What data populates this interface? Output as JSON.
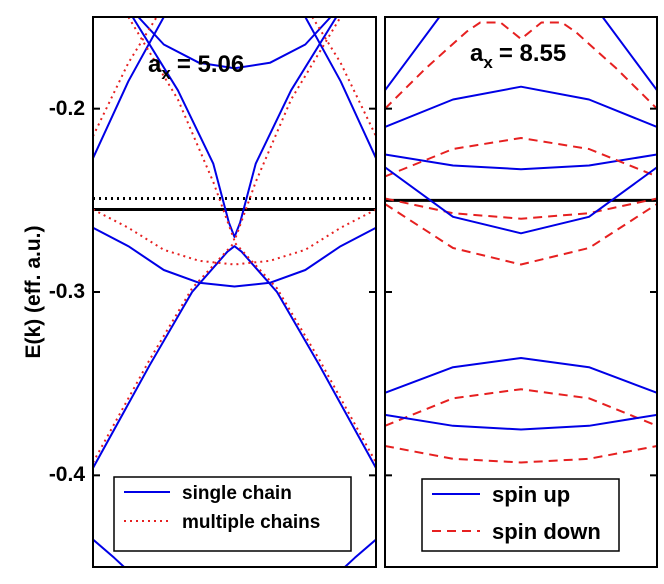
{
  "ylabel": "E(k)  (eff. a.u.)",
  "yticks": [
    "-0.2",
    "-0.3",
    "-0.4"
  ],
  "colors": {
    "blue": "#0000e6",
    "red": "#e62020",
    "black": "#000000"
  },
  "chart_data": [
    {
      "type": "line",
      "panel": "left",
      "annotation": {
        "main": "a",
        "sub": "x",
        "value": "= 5.06"
      },
      "ylim": [
        -0.45,
        -0.15
      ],
      "xlim": [
        -1,
        1
      ],
      "grid": false,
      "legend_position": "bottom",
      "legend": [
        {
          "label": "single chain",
          "style": "solid",
          "color": "blue"
        },
        {
          "label": "multiple chains",
          "style": "dotted",
          "color": "red"
        }
      ],
      "hlines": [
        {
          "y": -0.249,
          "style": "dotted",
          "color": "black"
        },
        {
          "y": -0.255,
          "style": "solid",
          "color": "black"
        }
      ],
      "series": [
        {
          "style": "solid",
          "color": "blue",
          "points": [
            [
              -0.68,
              -0.15
            ],
            [
              -0.5,
              -0.165
            ],
            [
              -0.25,
              -0.175
            ],
            [
              0,
              -0.178
            ],
            [
              0.25,
              -0.175
            ],
            [
              0.5,
              -0.165
            ],
            [
              0.68,
              -0.15
            ]
          ]
        },
        {
          "style": "solid",
          "color": "blue",
          "points": [
            [
              -1,
              -0.227
            ],
            [
              -0.75,
              -0.185
            ],
            [
              -0.5,
              -0.15
            ]
          ]
        },
        {
          "style": "solid",
          "color": "blue",
          "points": [
            [
              0.5,
              -0.15
            ],
            [
              0.75,
              -0.185
            ],
            [
              1,
              -0.227
            ]
          ]
        },
        {
          "style": "solid",
          "color": "blue",
          "points": [
            [
              -0.72,
              -0.15
            ],
            [
              -0.4,
              -0.19
            ],
            [
              -0.15,
              -0.23
            ],
            [
              -0.04,
              -0.262
            ],
            [
              0,
              -0.27
            ],
            [
              0.04,
              -0.262
            ],
            [
              0.15,
              -0.23
            ],
            [
              0.4,
              -0.19
            ],
            [
              0.72,
              -0.15
            ]
          ]
        },
        {
          "style": "solid",
          "color": "blue",
          "points": [
            [
              -1,
              -0.265
            ],
            [
              -0.75,
              -0.275
            ],
            [
              -0.5,
              -0.288
            ],
            [
              -0.25,
              -0.295
            ],
            [
              0,
              -0.297
            ],
            [
              0.25,
              -0.295
            ],
            [
              0.5,
              -0.288
            ],
            [
              0.75,
              -0.275
            ],
            [
              1,
              -0.265
            ]
          ]
        },
        {
          "style": "solid",
          "color": "blue",
          "points": [
            [
              -1,
              -0.396
            ],
            [
              -0.6,
              -0.34
            ],
            [
              -0.3,
              -0.3
            ],
            [
              -0.05,
              -0.278
            ],
            [
              0,
              -0.275
            ],
            [
              0.05,
              -0.278
            ],
            [
              0.3,
              -0.3
            ],
            [
              0.6,
              -0.34
            ],
            [
              1,
              -0.396
            ]
          ]
        },
        {
          "style": "solid",
          "color": "blue",
          "points": [
            [
              -1,
              -0.435
            ],
            [
              -0.85,
              -0.445
            ],
            [
              -0.78,
              -0.45
            ]
          ]
        },
        {
          "style": "solid",
          "color": "blue",
          "points": [
            [
              0.78,
              -0.45
            ],
            [
              0.85,
              -0.445
            ],
            [
              1,
              -0.435
            ]
          ]
        },
        {
          "style": "dotted",
          "color": "red",
          "points": [
            [
              -1,
              -0.215
            ],
            [
              -0.75,
              -0.175
            ],
            [
              -0.55,
              -0.15
            ]
          ]
        },
        {
          "style": "dotted",
          "color": "red",
          "points": [
            [
              0.55,
              -0.15
            ],
            [
              0.75,
              -0.175
            ],
            [
              1,
              -0.215
            ]
          ]
        },
        {
          "style": "dotted",
          "color": "red",
          "points": [
            [
              -0.75,
              -0.15
            ],
            [
              -0.4,
              -0.195
            ],
            [
              -0.15,
              -0.24
            ],
            [
              0,
              -0.272
            ],
            [
              0.15,
              -0.24
            ],
            [
              0.4,
              -0.195
            ],
            [
              0.75,
              -0.15
            ]
          ]
        },
        {
          "style": "dotted",
          "color": "red",
          "points": [
            [
              -1,
              -0.255
            ],
            [
              -0.75,
              -0.265
            ],
            [
              -0.5,
              -0.277
            ],
            [
              -0.25,
              -0.283
            ],
            [
              0,
              -0.285
            ],
            [
              0.25,
              -0.283
            ],
            [
              0.5,
              -0.277
            ],
            [
              0.75,
              -0.265
            ],
            [
              1,
              -0.255
            ]
          ]
        },
        {
          "style": "dotted",
          "color": "red",
          "points": [
            [
              -1,
              -0.393
            ],
            [
              -0.6,
              -0.337
            ],
            [
              -0.3,
              -0.298
            ],
            [
              0,
              -0.273
            ],
            [
              0.3,
              -0.298
            ],
            [
              0.6,
              -0.337
            ],
            [
              1,
              -0.393
            ]
          ]
        }
      ]
    },
    {
      "type": "line",
      "panel": "right",
      "annotation": {
        "main": "a",
        "sub": "x",
        "value": "= 8.55"
      },
      "ylim": [
        -0.45,
        -0.15
      ],
      "xlim": [
        -1,
        1
      ],
      "grid": false,
      "legend_position": "bottom",
      "legend": [
        {
          "label": "spin up",
          "style": "solid",
          "color": "blue"
        },
        {
          "label": "spin down",
          "style": "dashed",
          "color": "red"
        }
      ],
      "hlines": [
        {
          "y": -0.25,
          "style": "solid",
          "color": "black"
        }
      ],
      "series": [
        {
          "style": "solid",
          "color": "blue",
          "points": [
            [
              -1,
              -0.19
            ],
            [
              -0.8,
              -0.17
            ],
            [
              -0.6,
              -0.15
            ]
          ]
        },
        {
          "style": "solid",
          "color": "blue",
          "points": [
            [
              0.6,
              -0.15
            ],
            [
              0.8,
              -0.17
            ],
            [
              1,
              -0.19
            ]
          ]
        },
        {
          "style": "dashed",
          "color": "red",
          "points": [
            [
              -1,
              -0.2
            ],
            [
              -0.7,
              -0.178
            ],
            [
              -0.4,
              -0.158
            ],
            [
              -0.3,
              -0.153
            ],
            [
              -0.15,
              -0.153
            ],
            [
              0,
              -0.162
            ],
            [
              0.15,
              -0.153
            ],
            [
              0.3,
              -0.153
            ],
            [
              0.4,
              -0.158
            ],
            [
              0.7,
              -0.178
            ],
            [
              1,
              -0.2
            ]
          ]
        },
        {
          "style": "solid",
          "color": "blue",
          "points": [
            [
              -1,
              -0.21
            ],
            [
              -0.5,
              -0.195
            ],
            [
              0,
              -0.188
            ],
            [
              0.5,
              -0.195
            ],
            [
              1,
              -0.21
            ]
          ]
        },
        {
          "style": "solid",
          "color": "blue",
          "points": [
            [
              -1,
              -0.225
            ],
            [
              -0.5,
              -0.231
            ],
            [
              0,
              -0.233
            ],
            [
              0.5,
              -0.231
            ],
            [
              1,
              -0.225
            ]
          ]
        },
        {
          "style": "dashed",
          "color": "red",
          "points": [
            [
              -1,
              -0.237
            ],
            [
              -0.5,
              -0.222
            ],
            [
              0,
              -0.216
            ],
            [
              0.5,
              -0.222
            ],
            [
              1,
              -0.237
            ]
          ]
        },
        {
          "style": "dashed",
          "color": "red",
          "points": [
            [
              -1,
              -0.249
            ],
            [
              -0.5,
              -0.257
            ],
            [
              0,
              -0.26
            ],
            [
              0.5,
              -0.257
            ],
            [
              1,
              -0.249
            ]
          ]
        },
        {
          "style": "solid",
          "color": "blue",
          "points": [
            [
              -1,
              -0.232
            ],
            [
              -0.5,
              -0.259
            ],
            [
              0,
              -0.268
            ],
            [
              0.5,
              -0.259
            ],
            [
              1,
              -0.232
            ]
          ]
        },
        {
          "style": "dashed",
          "color": "red",
          "points": [
            [
              -1,
              -0.252
            ],
            [
              -0.5,
              -0.276
            ],
            [
              0,
              -0.285
            ],
            [
              0.5,
              -0.276
            ],
            [
              1,
              -0.252
            ]
          ]
        },
        {
          "style": "solid",
          "color": "blue",
          "points": [
            [
              -1,
              -0.355
            ],
            [
              -0.5,
              -0.341
            ],
            [
              0,
              -0.336
            ],
            [
              0.5,
              -0.341
            ],
            [
              1,
              -0.355
            ]
          ]
        },
        {
          "style": "dashed",
          "color": "red",
          "points": [
            [
              -1,
              -0.373
            ],
            [
              -0.5,
              -0.358
            ],
            [
              0,
              -0.353
            ],
            [
              0.5,
              -0.358
            ],
            [
              1,
              -0.373
            ]
          ]
        },
        {
          "style": "solid",
          "color": "blue",
          "points": [
            [
              -1,
              -0.367
            ],
            [
              -0.5,
              -0.373
            ],
            [
              0,
              -0.375
            ],
            [
              0.5,
              -0.373
            ],
            [
              1,
              -0.367
            ]
          ]
        },
        {
          "style": "dashed",
          "color": "red",
          "points": [
            [
              -1,
              -0.384
            ],
            [
              -0.5,
              -0.391
            ],
            [
              0,
              -0.393
            ],
            [
              0.5,
              -0.391
            ],
            [
              1,
              -0.384
            ]
          ]
        }
      ]
    }
  ]
}
